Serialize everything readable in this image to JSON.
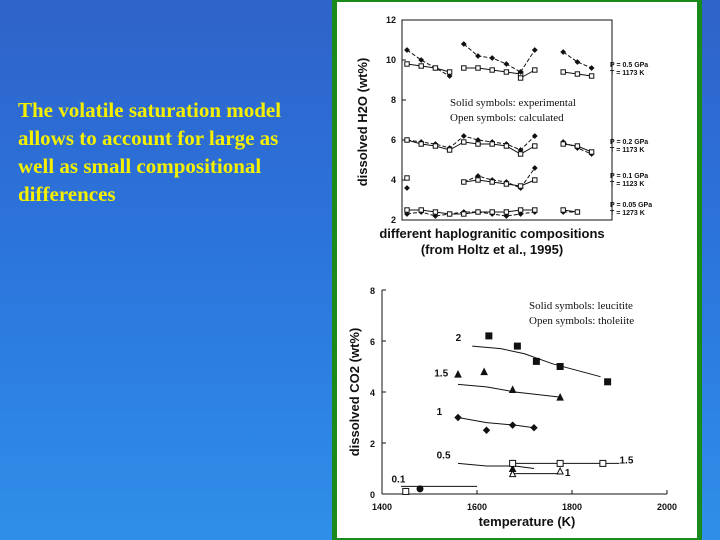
{
  "slide": {
    "text": "The volatile saturation model allows to account for large as well as small compositional differences"
  },
  "colors": {
    "background": "#2b74dc",
    "text": "#f4f000",
    "panel_border": "#1a8a1a"
  },
  "chart_data": [
    {
      "type": "line",
      "title": "",
      "ylabel": "dissolved H2O (wt%)",
      "xlabel": "different haplogranitic compositions",
      "xlabel2": "(from Holtz et al., 1995)",
      "ylim": [
        2,
        12
      ],
      "yticks": [
        "2",
        "4",
        "6",
        "8",
        "10",
        "12"
      ],
      "note_solid": "Solid symbols: experimental",
      "note_open": "Open symbols: calculated",
      "legend": [
        {
          "p": "P = 0.5 GPa",
          "t": "T = 1173 K"
        },
        {
          "p": "P = 0.2 GPa",
          "t": "T = 1173 K"
        },
        {
          "p": "P = 0.1 GPa",
          "t": "T = 1123 K"
        },
        {
          "p": "P = 0.05 GPa",
          "t": "T = 1273 K"
        }
      ],
      "series": [
        {
          "segments": [
            {
              "x": [
                1,
                2,
                3,
                4
              ],
              "exp": [
                10.5,
                10.0,
                9.6,
                9.2
              ],
              "calc": [
                9.8,
                9.7,
                9.6,
                9.4
              ]
            },
            {
              "x": [
                5,
                6,
                7,
                8,
                9
              ],
              "exp": [
                10.8,
                10.2,
                10.1,
                9.8,
                9.4
              ],
              "calc": [
                9.6,
                9.6,
                9.5,
                9.4,
                9.3
              ]
            },
            {
              "x": [
                9,
                10
              ],
              "exp": [
                9.4,
                10.5
              ],
              "calc": [
                9.1,
                9.5
              ]
            },
            {
              "x": [
                12,
                13,
                14
              ],
              "exp": [
                10.4,
                9.9,
                9.6
              ],
              "calc": [
                9.4,
                9.3,
                9.2
              ]
            }
          ]
        },
        {
          "segments": [
            {
              "x": [
                1,
                2,
                3,
                4,
                5,
                6,
                7,
                8,
                9,
                10
              ],
              "exp": [
                6.0,
                5.9,
                5.8,
                5.6,
                6.2,
                6.0,
                5.9,
                5.8,
                5.5,
                6.2
              ],
              "calc": [
                6.0,
                5.8,
                5.7,
                5.5,
                5.9,
                5.8,
                5.8,
                5.7,
                5.3,
                5.7
              ]
            },
            {
              "x": [
                12,
                13,
                14
              ],
              "exp": [
                5.9,
                5.6,
                5.3
              ],
              "calc": [
                5.8,
                5.7,
                5.4
              ]
            }
          ]
        },
        {
          "segments": [
            {
              "x": [
                1
              ],
              "exp": [
                3.6
              ],
              "calc": [
                4.1
              ]
            },
            {
              "x": [
                5,
                6,
                7,
                8,
                9,
                10
              ],
              "exp": [
                3.9,
                4.2,
                4.0,
                3.9,
                3.6,
                4.6
              ],
              "calc": [
                3.9,
                4.0,
                3.9,
                3.8,
                3.7,
                4.0
              ]
            }
          ]
        },
        {
          "segments": [
            {
              "x": [
                1,
                2,
                3,
                4,
                5,
                6,
                7,
                8,
                9,
                10
              ],
              "exp": [
                2.3,
                2.4,
                2.2,
                2.3,
                2.4,
                2.4,
                2.3,
                2.2,
                2.3,
                2.4
              ],
              "calc": [
                2.5,
                2.5,
                2.4,
                2.3,
                2.3,
                2.4,
                2.4,
                2.4,
                2.5,
                2.5
              ]
            },
            {
              "x": [
                12,
                13
              ],
              "exp": [
                2.4,
                2.4
              ],
              "calc": [
                2.5,
                2.4
              ]
            }
          ]
        }
      ]
    },
    {
      "type": "scatter",
      "title": "",
      "ylabel": "dissolved CO2 (wt%)",
      "xlabel": "temperature (K)",
      "xlim": [
        1400,
        2000
      ],
      "ylim": [
        0,
        8
      ],
      "xticks": [
        "1400",
        "1600",
        "1800",
        "2000"
      ],
      "yticks": [
        "0",
        "2",
        "4",
        "6",
        "8"
      ],
      "note_solid": "Solid symbols: leucitite",
      "note_open": "Open symbols: tholeiite",
      "curve_labels": [
        "2",
        "1.5",
        "1",
        "0.5",
        "1.5",
        "1",
        "0.1"
      ],
      "series": [
        {
          "label": "2",
          "marker": "square-filled",
          "points": [
            [
              1625,
              6.2
            ],
            [
              1685,
              5.8
            ],
            [
              1725,
              5.2
            ],
            [
              1775,
              5.0
            ],
            [
              1875,
              4.4
            ]
          ],
          "curve": [
            [
              1590,
              5.8
            ],
            [
              1650,
              5.7
            ],
            [
              1700,
              5.5
            ],
            [
              1760,
              5.1
            ],
            [
              1860,
              4.6
            ]
          ]
        },
        {
          "label": "1.5",
          "marker": "triangle-filled",
          "points": [
            [
              1560,
              4.7
            ],
            [
              1615,
              4.8
            ],
            [
              1675,
              4.1
            ],
            [
              1775,
              3.8
            ]
          ],
          "curve": [
            [
              1560,
              4.3
            ],
            [
              1620,
              4.2
            ],
            [
              1680,
              4.0
            ],
            [
              1775,
              3.8
            ]
          ]
        },
        {
          "label": "1",
          "marker": "diamond-filled",
          "points": [
            [
              1560,
              3.0
            ],
            [
              1620,
              2.5
            ],
            [
              1675,
              2.7
            ],
            [
              1720,
              2.6
            ]
          ],
          "curve": [
            [
              1560,
              3.0
            ],
            [
              1620,
              2.8
            ],
            [
              1680,
              2.7
            ],
            [
              1720,
              2.6
            ]
          ]
        },
        {
          "label": "0.5",
          "marker": "triangle-filled",
          "points": [
            [
              1675,
              1.0
            ]
          ],
          "curve": [
            [
              1560,
              1.2
            ],
            [
              1620,
              1.1
            ],
            [
              1680,
              1.1
            ],
            [
              1720,
              1.0
            ]
          ]
        },
        {
          "label": "1.5",
          "marker": "square-open",
          "points": [
            [
              1450,
              0.1
            ],
            [
              1675,
              1.2
            ],
            [
              1775,
              1.2
            ],
            [
              1865,
              1.2
            ]
          ],
          "curve": [
            [
              1670,
              1.2
            ],
            [
              1770,
              1.2
            ],
            [
              1900,
              1.2
            ]
          ]
        },
        {
          "label": "1",
          "marker": "triangle-open",
          "points": [
            [
              1675,
              0.8
            ],
            [
              1775,
              0.9
            ]
          ],
          "curve": [
            [
              1670,
              0.8
            ],
            [
              1770,
              0.8
            ]
          ]
        },
        {
          "label": "0.1",
          "marker": "circle-filled",
          "points": [
            [
              1480,
              0.2
            ]
          ],
          "curve": [
            [
              1440,
              0.3
            ],
            [
              1600,
              0.3
            ]
          ]
        }
      ]
    }
  ]
}
